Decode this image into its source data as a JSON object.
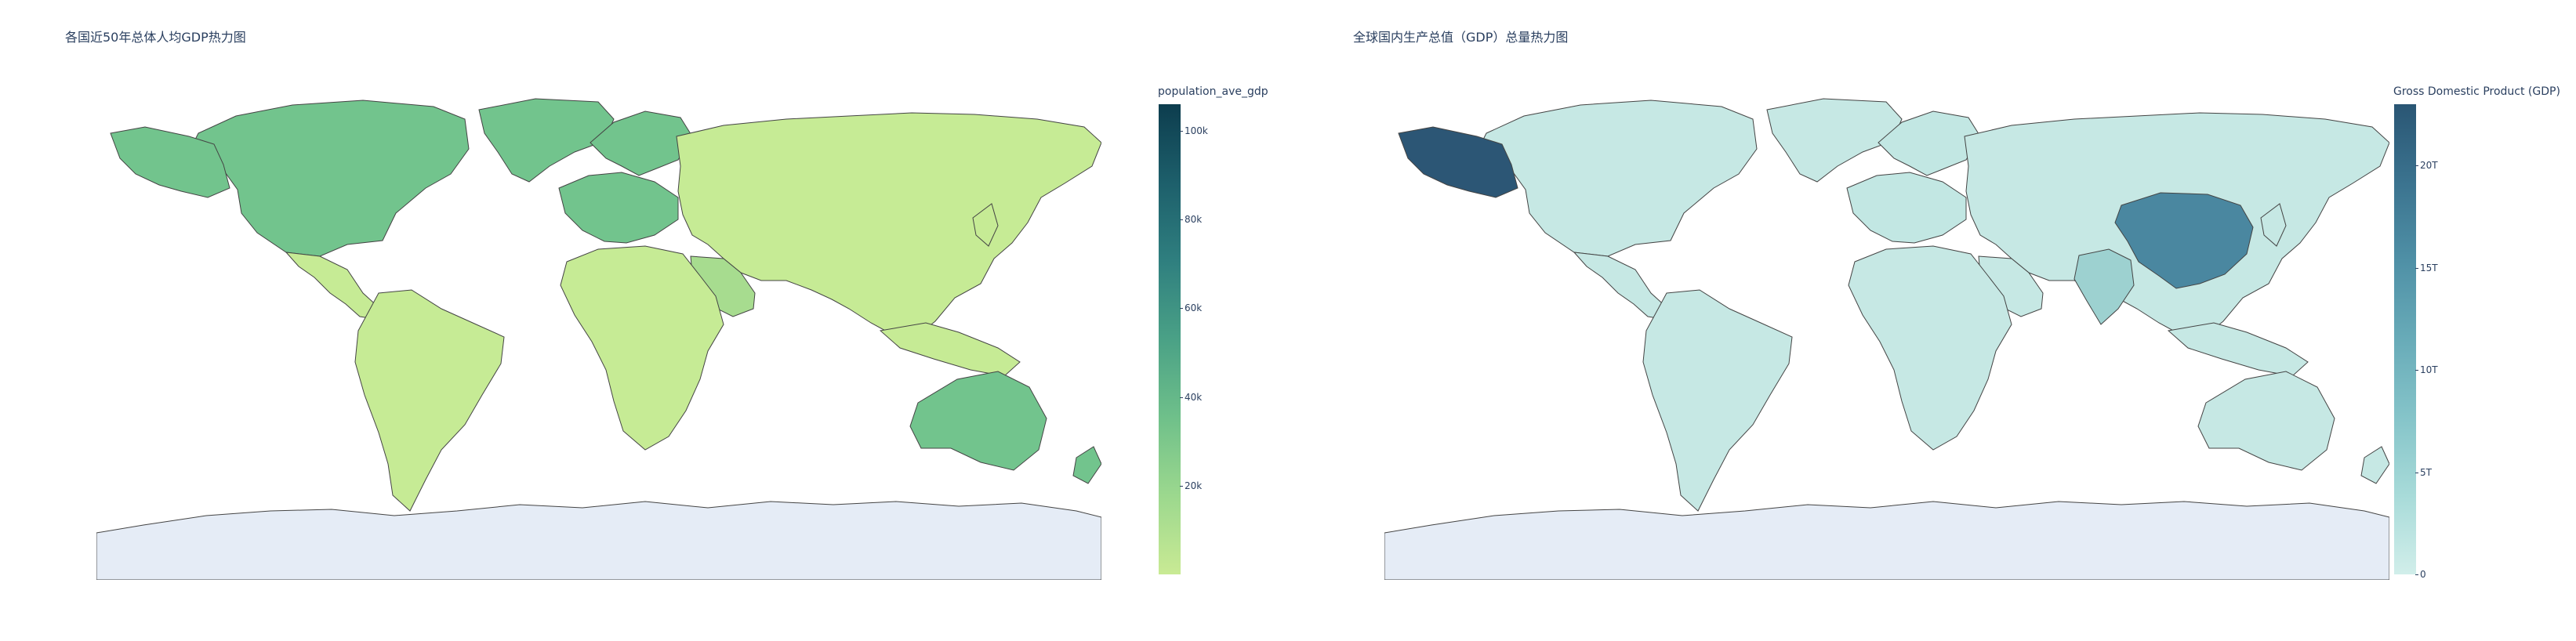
{
  "chart_data": [
    {
      "type": "choropleth",
      "title": "各国近50年总体人均GDP热力图",
      "colorbar": {
        "title": "population_ave_gdp",
        "range": [
          0,
          106000
        ],
        "ticks": [
          {
            "value": 20000,
            "label": "20k"
          },
          {
            "value": 40000,
            "label": "40k"
          },
          {
            "value": 60000,
            "label": "60k"
          },
          {
            "value": 80000,
            "label": "80k"
          },
          {
            "value": 100000,
            "label": "100k"
          }
        ],
        "colorscale": [
          "#c9ea94",
          "#9cd88e",
          "#6fc08a",
          "#4aa186",
          "#2f7f7f",
          "#1d5f6b",
          "#0d3d4e"
        ]
      },
      "missing_color": "#e5ecf6",
      "regions": [
        {
          "name": "North America",
          "level": "high"
        },
        {
          "name": "Greenland",
          "level": "high"
        },
        {
          "name": "Western Europe",
          "level": "high"
        },
        {
          "name": "Scandinavia",
          "level": "high"
        },
        {
          "name": "Australia",
          "level": "high"
        },
        {
          "name": "Arabian Gulf",
          "level": "medium"
        },
        {
          "name": "Latin America",
          "level": "low"
        },
        {
          "name": "Africa",
          "level": "low"
        },
        {
          "name": "Russia & Asia",
          "level": "low"
        },
        {
          "name": "Antarctica",
          "level": "missing"
        }
      ]
    },
    {
      "type": "choropleth",
      "title": "全球国内生产总值（GDP）总量热力图",
      "colorbar": {
        "title": "Gross Domestic Product (GDP)",
        "range": [
          0,
          23000000000000
        ],
        "ticks": [
          {
            "value": 0,
            "label": "0"
          },
          {
            "value": 5000000000000,
            "label": "5T"
          },
          {
            "value": 10000000000000,
            "label": "10T"
          },
          {
            "value": 15000000000000,
            "label": "15T"
          },
          {
            "value": 20000000000000,
            "label": "20T"
          }
        ],
        "colorscale": [
          "#d1eeea",
          "#a8dbd9",
          "#85c4c9",
          "#68abb8",
          "#4f90a6",
          "#3b738f",
          "#2a5674"
        ]
      },
      "missing_color": "#e5ecf6",
      "regions": [
        {
          "name": "United States",
          "level": "max"
        },
        {
          "name": "China",
          "level": "high"
        },
        {
          "name": "India",
          "level": "medium"
        },
        {
          "name": "Europe",
          "level": "low"
        },
        {
          "name": "Rest of world",
          "level": "min"
        },
        {
          "name": "Antarctica",
          "level": "missing"
        }
      ]
    }
  ]
}
